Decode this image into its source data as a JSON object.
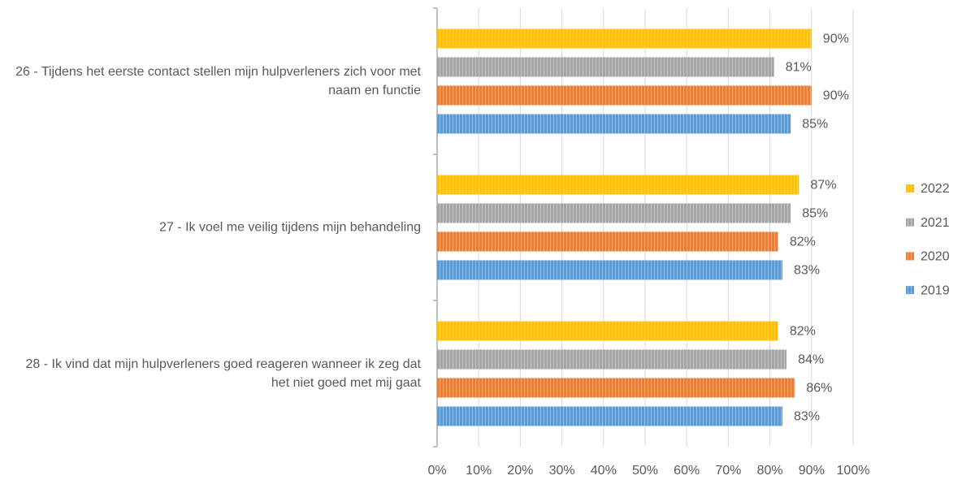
{
  "chart_data": {
    "type": "bar",
    "orientation": "horizontal",
    "categories": [
      "26 - Tijdens het eerste contact stellen mijn hulpverleners zich voor met naam en functie",
      "27 - Ik voel me veilig tijdens mijn behandeling",
      "28 - Ik vind dat mijn hulpverleners goed reageren wanneer ik zeg dat het niet goed met mij gaat"
    ],
    "series": [
      {
        "name": "2022",
        "color": "#ffc000",
        "values": [
          90,
          87,
          82
        ],
        "value_labels": [
          "90%",
          "87%",
          "82%"
        ]
      },
      {
        "name": "2021",
        "color": "#a5a5a5",
        "values": [
          81,
          85,
          84
        ],
        "value_labels": [
          "81%",
          "85%",
          "84%"
        ]
      },
      {
        "name": "2020",
        "color": "#ed7d31",
        "values": [
          90,
          82,
          86
        ],
        "value_labels": [
          "90%",
          "82%",
          "86%"
        ]
      },
      {
        "name": "2019",
        "color": "#5b9bd5",
        "values": [
          85,
          83,
          83
        ],
        "value_labels": [
          "85%",
          "83%",
          "83%"
        ]
      }
    ],
    "xlim": [
      0,
      100
    ],
    "xticks": [
      {
        "value": 0,
        "label": "0%"
      },
      {
        "value": 10,
        "label": "10%"
      },
      {
        "value": 20,
        "label": "20%"
      },
      {
        "value": 30,
        "label": "30%"
      },
      {
        "value": 40,
        "label": "40%"
      },
      {
        "value": 50,
        "label": "50%"
      },
      {
        "value": 60,
        "label": "60%"
      },
      {
        "value": 70,
        "label": "70%"
      },
      {
        "value": 80,
        "label": "80%"
      },
      {
        "value": 90,
        "label": "90%"
      },
      {
        "value": 100,
        "label": "100%"
      }
    ],
    "grid": true,
    "legend": "right"
  }
}
